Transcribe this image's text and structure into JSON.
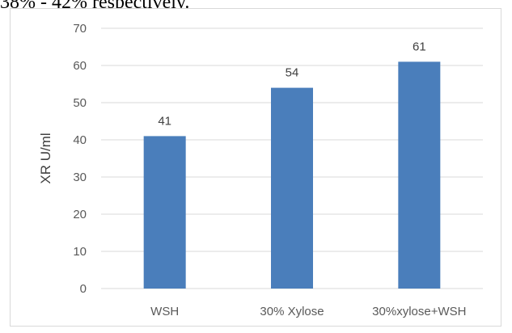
{
  "caption_fragment": "38% - 42% respectively.",
  "chart_data": {
    "type": "bar",
    "categories": [
      "WSH",
      "30% Xylose",
      "30%xylose+WSH"
    ],
    "values": [
      41,
      54,
      61
    ],
    "data_labels": [
      "41",
      "54",
      "61"
    ],
    "title": "",
    "xlabel": "",
    "ylabel": "XR U/ml",
    "ylim": [
      0,
      70
    ],
    "yticks": [
      0,
      10,
      20,
      30,
      40,
      50,
      60,
      70
    ],
    "ytick_labels": [
      "0",
      "10",
      "20",
      "30",
      "40",
      "50",
      "60",
      "70"
    ],
    "grid": true,
    "legend": "none",
    "bar_color": "#4a7ebb",
    "grid_color": "#d9d9d9"
  }
}
